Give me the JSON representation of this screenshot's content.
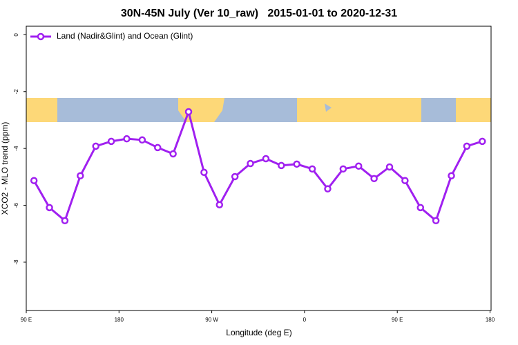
{
  "chart_data": {
    "type": "line",
    "title": "30N-45N July (Ver 10_raw)   2015-01-01 to 2020-12-31",
    "xlabel": "Longitude (deg E)",
    "ylabel": "XCO2 - MLO trend (ppm)",
    "x": [
      97.5,
      112.5,
      127.5,
      142.5,
      157.5,
      172.5,
      187.5,
      202.5,
      217.5,
      232.5,
      247.5,
      262.5,
      277.5,
      292.5,
      307.5,
      322.5,
      337.5,
      352.5,
      367.5,
      382.5,
      397.5,
      412.5,
      427.5,
      442.5,
      457.5,
      472.5,
      487.5,
      502.5,
      517.5,
      532.5
    ],
    "series": [
      {
        "name": "Land (Nadir&Glint) and Ocean (Glint)",
        "color": "#a020f0",
        "values": [
          -5.13,
          -6.08,
          -6.54,
          -4.96,
          -3.92,
          -3.75,
          -3.66,
          -3.7,
          -3.97,
          -4.19,
          -2.71,
          -4.84,
          -5.98,
          -4.99,
          -4.53,
          -4.36,
          -4.6,
          -4.55,
          -4.72,
          -5.42,
          -4.72,
          -4.62,
          -5.06,
          -4.65,
          -5.13,
          -6.08,
          -6.54,
          -4.96,
          -3.92,
          -3.75
        ]
      }
    ],
    "xlim": [
      90,
      541
    ],
    "ylim": [
      -9.7,
      0.3
    ],
    "xticks": [
      {
        "value": 90,
        "label": "90 E"
      },
      180,
      {
        "value": 270,
        "label": "90 W"
      },
      {
        "value": 360,
        "label": "0"
      },
      {
        "value": 450,
        "label": "90 E"
      },
      {
        "value": 540,
        "label": "180"
      }
    ],
    "yticks": [
      0,
      -2,
      -4,
      -6,
      -8
    ],
    "legend": "top-left"
  }
}
